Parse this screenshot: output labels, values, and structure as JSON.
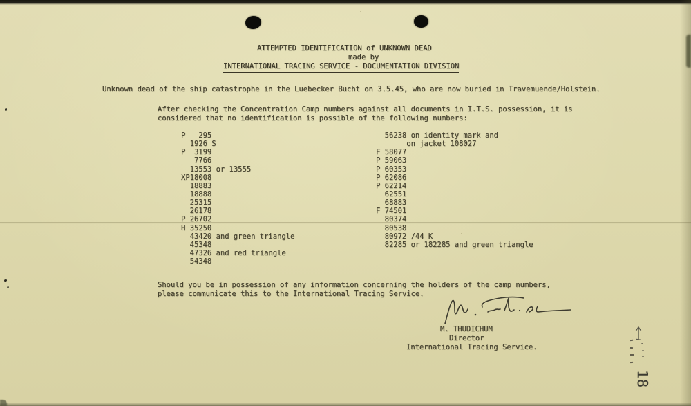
{
  "doc": {
    "header": {
      "line1": "ATTEMPTED IDENTIFICATION of UNKNOWN DEAD",
      "line2": "made by",
      "line3": "INTERNATIONAL TRACING SERVICE - DOCUMENTATION DIVISION"
    },
    "intro": "Unknown dead of the ship catastrophe in the Luebecker Bucht on 3.5.45, who are now buried in Travemuende/Holstein.",
    "checking": {
      "line1": "After checking the Concentration Camp numbers against all documents in I.T.S. possession, it is",
      "line2": "considered that no identification is possible of the following numbers:"
    },
    "left_column": [
      "P   295",
      "  1926 S",
      "P  3199",
      "   7766",
      "  13553 or 13555",
      "XP18008",
      "  18883",
      "  18888",
      "  25315",
      "  26178",
      "P 26702",
      "H 35250",
      "  43420 and green triangle",
      "  45348",
      "  47326 and red triangle",
      "  54348"
    ],
    "right_column": [
      "  56238 on identity mark and",
      "       on jacket 108027",
      "F 58077",
      "P 59063",
      "P 60353",
      "P 62086",
      "P 62214",
      "  62551",
      "  68883",
      "F 74501",
      "  80374",
      "  80538",
      "  80972 /44 K",
      "  82285 or 182285 and green triangle"
    ],
    "closing": {
      "line1": "Should you be in possession of any information concerning the holders of the camp numbers,",
      "line2": "please communicate this to the International Tracing Service."
    },
    "signature_block": {
      "name": "M. THUDICHUM",
      "title": "Director",
      "org": "International Tracing Service."
    },
    "annotations": {
      "page_number": "18"
    },
    "colors": {
      "paper": "#ded9ad",
      "ink": "#45412e",
      "pencil": "#4a4940"
    }
  }
}
